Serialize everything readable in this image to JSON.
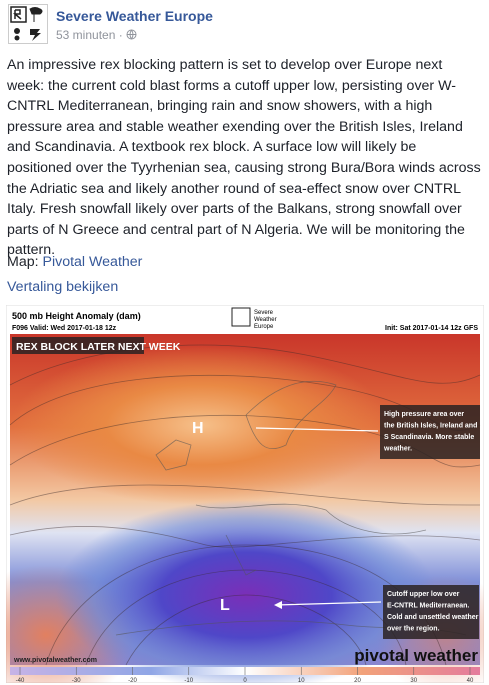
{
  "header": {
    "page_name": "Severe Weather Europe",
    "time": "53 minuten",
    "separator": "·"
  },
  "post": {
    "text": "An impressive rex blocking pattern is set to develop over Europe next week: the current cold blast forms a cutoff upper low, persisting over W-CNTRL Mediterranean, bringing rain and snow showers, with a high pressure area and stable weather exending over the British Isles, Ireland and Scandinavia. A textbook rex block. A surface low will likely be positioned over the Tyyrhenian sea, causing strong Bura/Bora winds across the Adriatic sea and likely another round of sea-effect snow over CNTRL Italy. Fresh snowfall likely over parts of the Balkans, strong snowfall over parts of N Greece and central part of N Algeria. We will be monitoring the pattern.",
    "map_label": "Map:",
    "map_link": "Pivotal Weather",
    "translate": "Vertaling bekijken"
  },
  "image": {
    "title": "500 mb Height Anomaly (dam)",
    "valid": "F096 Valid: Wed 2017-01-18 12z",
    "logo_lines": [
      "Severe",
      "Weather",
      "Europe"
    ],
    "init": "Init: Sat 2017-01-14 12z GFS",
    "banner": "REX BLOCK LATER NEXT WEEK",
    "high": "H",
    "low": "L",
    "high_note": [
      "High pressure area over",
      "the British Isles, Ireland and",
      "S Scandinavia. More stable",
      "weather."
    ],
    "low_note": [
      "Cutoff upper low over",
      "E-CNTRL Mediterranean.",
      "Cold and unsettled weather",
      "over the region."
    ],
    "source": "www.pivotalweather.com",
    "brand": "pivotal weather",
    "colorbar_ticks": [
      -40,
      -30,
      -20,
      -10,
      0,
      10,
      20,
      30,
      40
    ]
  }
}
